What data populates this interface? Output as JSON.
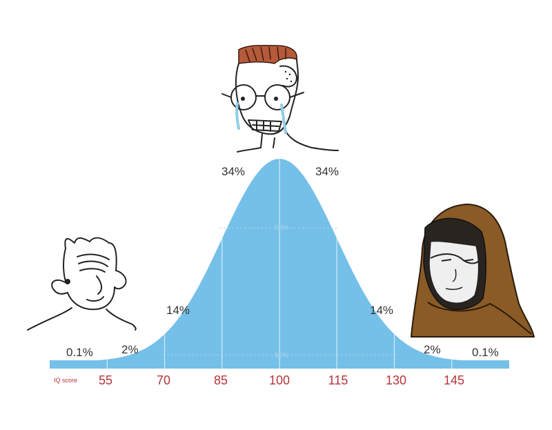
{
  "colors": {
    "curve": "#74c0e8",
    "axis_text": "#b5343a",
    "label_text": "#333333"
  },
  "axis": {
    "title": "IQ score",
    "ticks": [
      "55",
      "70",
      "85",
      "100",
      "115",
      "130",
      "145"
    ]
  },
  "chart_data": {
    "type": "area",
    "title": "",
    "xlabel": "IQ score",
    "ylabel": "",
    "x_ticks": [
      55,
      70,
      85,
      100,
      115,
      130,
      145
    ],
    "xlim": [
      40,
      160
    ],
    "distribution": {
      "kind": "normal",
      "mean": 100,
      "sd": 15
    },
    "segments": [
      {
        "range": [
          40,
          55
        ],
        "label": "0.1%"
      },
      {
        "range": [
          55,
          70
        ],
        "label": "2%"
      },
      {
        "range": [
          70,
          85
        ],
        "label": "14%"
      },
      {
        "range": [
          85,
          100
        ],
        "label": "34%"
      },
      {
        "range": [
          100,
          115
        ],
        "label": "34%"
      },
      {
        "range": [
          115,
          130
        ],
        "label": "14%"
      },
      {
        "range": [
          130,
          145
        ],
        "label": "2%"
      },
      {
        "range": [
          145,
          160
        ],
        "label": "0.1%"
      }
    ],
    "bands": [
      {
        "range": [
          85,
          115
        ],
        "label": "68%"
      },
      {
        "range": [
          70,
          130
        ],
        "label": "95%"
      }
    ]
  },
  "characters": [
    {
      "name": "simple-wojak",
      "position": "left"
    },
    {
      "name": "crying-nerd-wojak",
      "position": "center"
    },
    {
      "name": "hooded-monk-wojak",
      "position": "right"
    }
  ]
}
